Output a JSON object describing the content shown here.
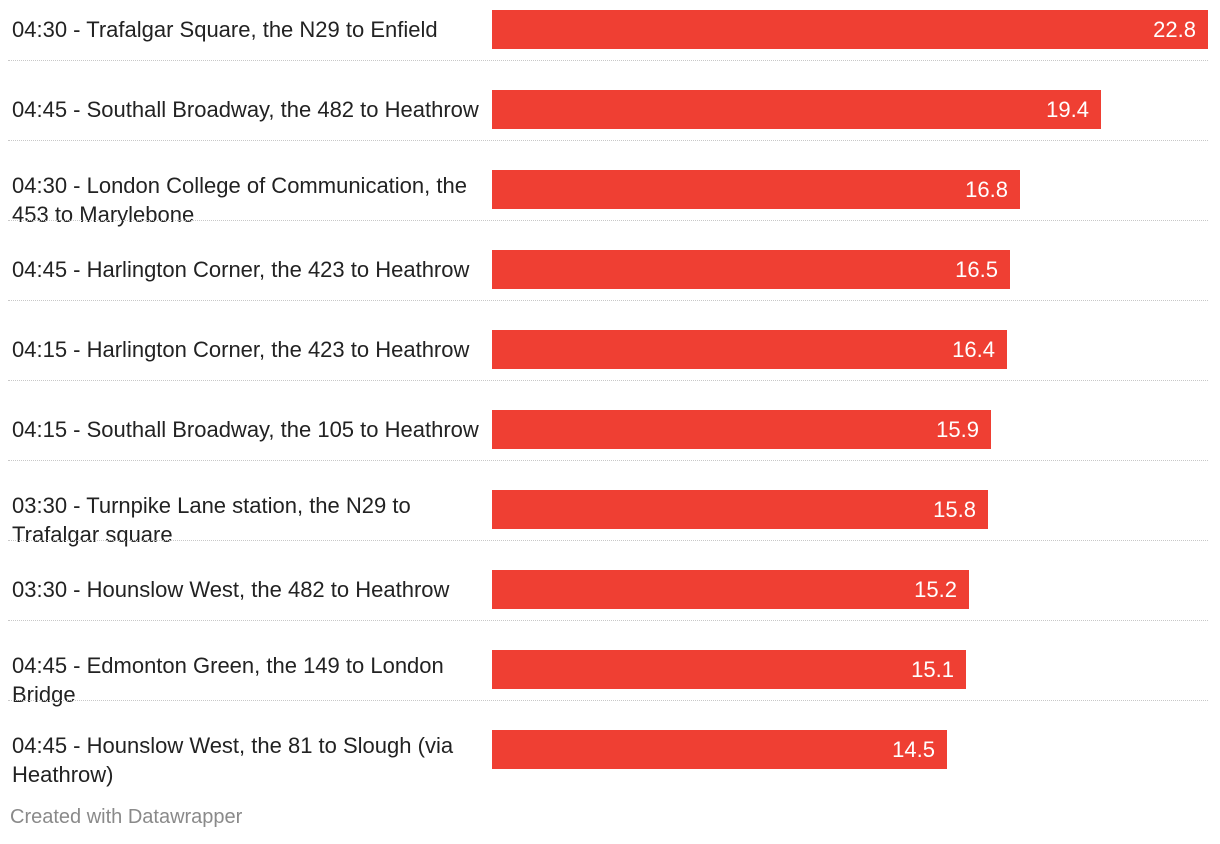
{
  "chart_data": {
    "type": "bar",
    "orientation": "horizontal",
    "categories": [
      "04:30 - Trafalgar Square, the N29 to Enfield",
      "04:45 - Southall Broadway, the 482 to Heathrow",
      "04:30 - London College of Communication, the 453 to Marylebone",
      "04:45 - Harlington Corner, the 423 to Heathrow",
      "04:15 - Harlington Corner, the 423 to Heathrow",
      "04:15 - Southall Broadway, the 105 to Heathrow",
      "03:30 - Turnpike Lane station, the N29 to Trafalgar square",
      "03:30 - Hounslow West, the 482 to Heathrow",
      "04:45 - Edmonton Green, the 149 to London Bridge",
      "04:45 - Hounslow West, the 81 to Slough (via Heathrow)"
    ],
    "values": [
      22.8,
      19.4,
      16.8,
      16.5,
      16.4,
      15.9,
      15.8,
      15.2,
      15.1,
      14.5
    ],
    "value_labels": [
      "22.8",
      "19.4",
      "16.8",
      "16.5",
      "16.4",
      "15.9",
      "15.8",
      "15.2",
      "15.1",
      "14.5"
    ],
    "xlim": [
      0,
      22.8
    ],
    "bar_color": "#ef3f33",
    "value_label_color": "#ffffff",
    "title": "",
    "xlabel": "",
    "ylabel": ""
  },
  "footer": {
    "credit": "Created with Datawrapper"
  }
}
